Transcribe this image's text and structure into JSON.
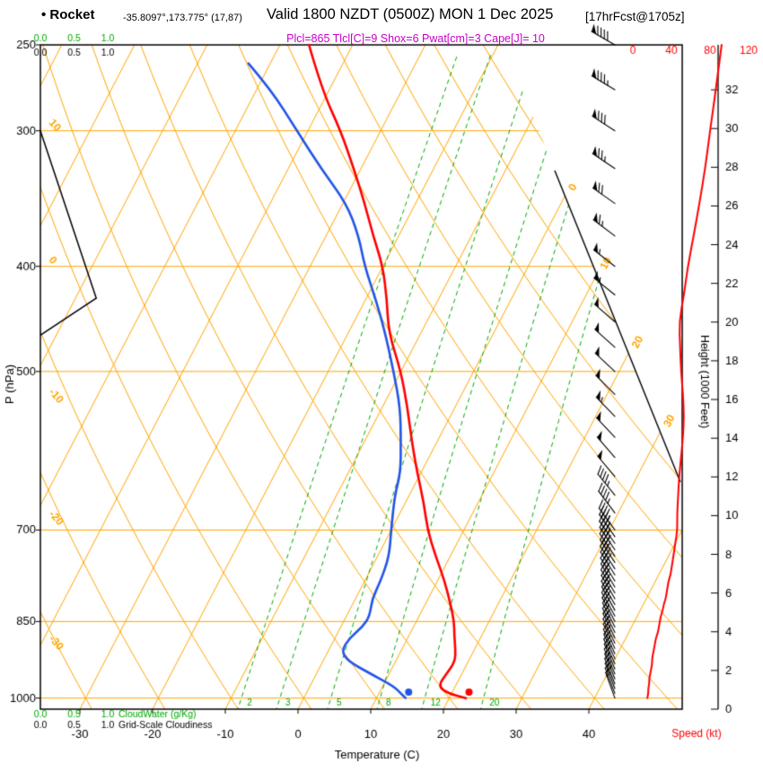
{
  "header": {
    "station_label": "• Rocket",
    "coords": "-35.8097°,173.775° (17,87)",
    "valid_text": "Valid 1800 NZDT (0500Z) MON 1 Dec 2025",
    "fcst_text": "[17hrFcst@1705z]",
    "indices_text": "Plcl=865 Tlcl[C]=9 Shox=6 Pwat[cm]=3 Cape[J]= 10"
  },
  "labels": {
    "pressure_axis": "P (hPa)",
    "temperature_axis": "Temperature (C)",
    "height_axis": "Height (1000 Feet)",
    "speed_axis": "Speed (kt)",
    "cloudwater_axis": "CloudWater (g/Kg)",
    "cloudiness_axis": "Grid-Scale Cloudiness"
  },
  "colors": {
    "grid_orange": "#ffa500",
    "mixing_green": "#00a800",
    "temperature_red": "#ff0000",
    "dewpoint_blue": "#2255e6",
    "speed_red": "#ff0000",
    "indices_magenta": "#c800c8",
    "axis_black": "#000000"
  },
  "axis_ticks": {
    "pressure_hPa": [
      250,
      300,
      400,
      500,
      700,
      850,
      1000
    ],
    "temperature_C": [
      -30,
      -20,
      -10,
      0,
      10,
      20,
      30,
      40
    ],
    "height_kft": [
      0,
      2,
      4,
      6,
      8,
      10,
      12,
      14,
      16,
      18,
      20,
      22,
      24,
      26,
      28,
      30,
      32
    ],
    "speed_kt": [
      0,
      40,
      80,
      120
    ],
    "cloud_scale": [
      "0.0",
      "0.5",
      "1.0"
    ],
    "isotherm_labels_right": [
      0,
      10,
      20,
      30
    ],
    "dry_adiabat_labels_C": [
      10,
      0,
      -10,
      -20,
      -30
    ],
    "mixing_ratio_gkg": [
      2,
      3,
      5,
      8,
      12,
      20
    ]
  },
  "chart_data": {
    "type": "line",
    "subtype": "skew-t log-p sounding",
    "pressure_range_hPa": [
      250,
      1025
    ],
    "temperature_axis_range_C": [
      -30,
      40
    ],
    "temperature_profile": {
      "pressure_hPa": [
        250,
        275,
        300,
        325,
        350,
        375,
        400,
        430,
        460,
        500,
        540,
        580,
        620,
        660,
        700,
        740,
        780,
        820,
        850,
        875,
        900,
        925,
        950,
        975,
        990,
        1000
      ],
      "temperature_C": [
        -46,
        -41,
        -35.5,
        -31,
        -27,
        -23.5,
        -20,
        -17,
        -14.5,
        -10,
        -6.5,
        -3.5,
        -0.5,
        2.5,
        5,
        8,
        11,
        13.5,
        15.2,
        16.2,
        17.3,
        18.2,
        17.9,
        17.6,
        19.5,
        22.3
      ]
    },
    "dewpoint_profile": {
      "pressure_hPa": [
        260,
        275,
        300,
        325,
        350,
        375,
        400,
        430,
        460,
        500,
        540,
        580,
        620,
        650,
        700,
        740,
        780,
        810,
        840,
        860,
        880,
        905,
        925,
        950,
        975,
        990,
        1000
      ],
      "dewpoint_C": [
        -53,
        -48,
        -41.5,
        -35.5,
        -29.5,
        -25.5,
        -22.5,
        -18.5,
        -15,
        -11,
        -7.5,
        -5,
        -2.8,
        -2,
        0,
        1.6,
        2.2,
        2.3,
        3.2,
        3.0,
        2.0,
        1.8,
        3.5,
        7.5,
        11.5,
        13,
        14
      ]
    },
    "wind_profile": {
      "pressure_hPa": [
        1000,
        990,
        980,
        970,
        960,
        950,
        940,
        930,
        920,
        910,
        900,
        890,
        880,
        870,
        860,
        850,
        840,
        830,
        820,
        810,
        800,
        790,
        780,
        770,
        760,
        750,
        740,
        730,
        720,
        710,
        700,
        675,
        650,
        625,
        600,
        575,
        550,
        525,
        500,
        475,
        450,
        425,
        400,
        375,
        350,
        325,
        300,
        275,
        250
      ],
      "speed_kt": [
        15,
        16,
        16,
        17,
        17,
        18,
        19,
        20,
        20,
        21,
        22,
        23,
        24,
        26,
        27,
        28,
        29,
        31,
        32,
        34,
        35,
        36,
        37,
        39,
        40,
        41,
        42,
        43,
        44,
        45,
        46,
        46,
        47,
        48,
        50,
        52,
        53,
        52,
        50,
        49,
        48,
        53,
        57,
        63,
        69,
        75,
        80,
        86,
        92
      ],
      "direction_deg": [
        340,
        339,
        339,
        338,
        338,
        337,
        337,
        336,
        336,
        335,
        335,
        334,
        334,
        333,
        333,
        332,
        331,
        331,
        330,
        330,
        329,
        329,
        328,
        328,
        327,
        327,
        326,
        326,
        325,
        325,
        324,
        323,
        321,
        320,
        319,
        317,
        316,
        315,
        313,
        312,
        311,
        309,
        308,
        307,
        305,
        304,
        303,
        301,
        300
      ]
    },
    "cloudiness_profile": {
      "pressure_hPa": [
        300,
        428,
        463
      ],
      "fraction": [
        0,
        0.83,
        0
      ]
    },
    "surface_markers": {
      "pressure_hPa": 1000,
      "temperature_C": 22.3,
      "dewpoint_C": 14
    }
  }
}
